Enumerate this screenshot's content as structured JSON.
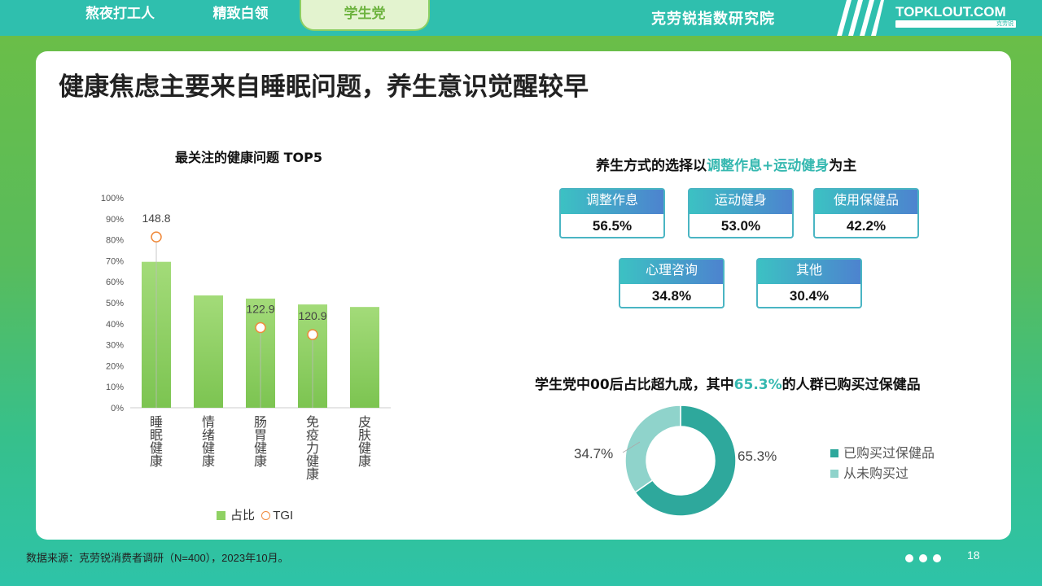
{
  "tabs": [
    {
      "label": "熬夜打工人"
    },
    {
      "label": "精致白领"
    },
    {
      "label": "学生党"
    }
  ],
  "header": {
    "institute": "克劳锐指数研究院",
    "brand": "TOPKLOUT.COM",
    "brand_sub": "克劳锐"
  },
  "slide": {
    "title": "健康焦虑主要来自睡眠问题，养生意识觉醒较早",
    "left_title": "最关注的健康问题 TOP5",
    "mid_title": {
      "pre": "养生方式的选择以",
      "hl": "调整作息+运动健身",
      "post": "为主"
    },
    "lifestyle": [
      {
        "label": "调整作息",
        "value": "56.5%"
      },
      {
        "label": "运动健身",
        "value": "53.0%"
      },
      {
        "label": "使用保健品",
        "value": "42.2%"
      },
      {
        "label": "心理咨询",
        "value": "34.8%"
      },
      {
        "label": "其他",
        "value": "30.4%"
      }
    ],
    "donut_title": {
      "pre": "学生党中00后占比超九成，其中",
      "hl": "65.3%",
      "post": "的人群已购买过保健品"
    }
  },
  "colors": {
    "bar": "#8fd163",
    "tgi": "#f08a3c",
    "teal": "#2ea89c",
    "teal_light": "#8fd3cb"
  },
  "chart_data": [
    {
      "type": "bar",
      "title": "最关注的健康问题 TOP5",
      "categories": [
        "睡眠健康",
        "情绪健康",
        "肠胃健康",
        "免疫力健康",
        "皮肤健康"
      ],
      "series": [
        {
          "name": "占比",
          "values": [
            69.5,
            53.5,
            52,
            49.2,
            48
          ]
        },
        {
          "name": "TGI",
          "values": [
            148.8,
            null,
            122.9,
            120.9,
            null
          ],
          "labels": [
            "148.8",
            "",
            "122.9",
            "120.9",
            ""
          ]
        }
      ],
      "ylim": [
        0,
        100
      ],
      "yticks": [
        "0%",
        "10%",
        "20%",
        "30%",
        "40%",
        "50%",
        "60%",
        "70%",
        "80%",
        "90%",
        "100%"
      ],
      "legend": "bottom"
    },
    {
      "type": "pie",
      "title": "学生党中00后占比超九成，其中65.3%的人群已购买过保健品",
      "series": [
        {
          "labels": [
            "已购买过保健品",
            "从未购买过"
          ],
          "values": [
            65.3,
            34.7
          ],
          "text": [
            "65.3%",
            "34.7%"
          ]
        }
      ],
      "legend": "right"
    }
  ],
  "footer": {
    "source": "数据来源：克劳锐消费者调研（N=400），2023年10月。",
    "page": "18"
  }
}
